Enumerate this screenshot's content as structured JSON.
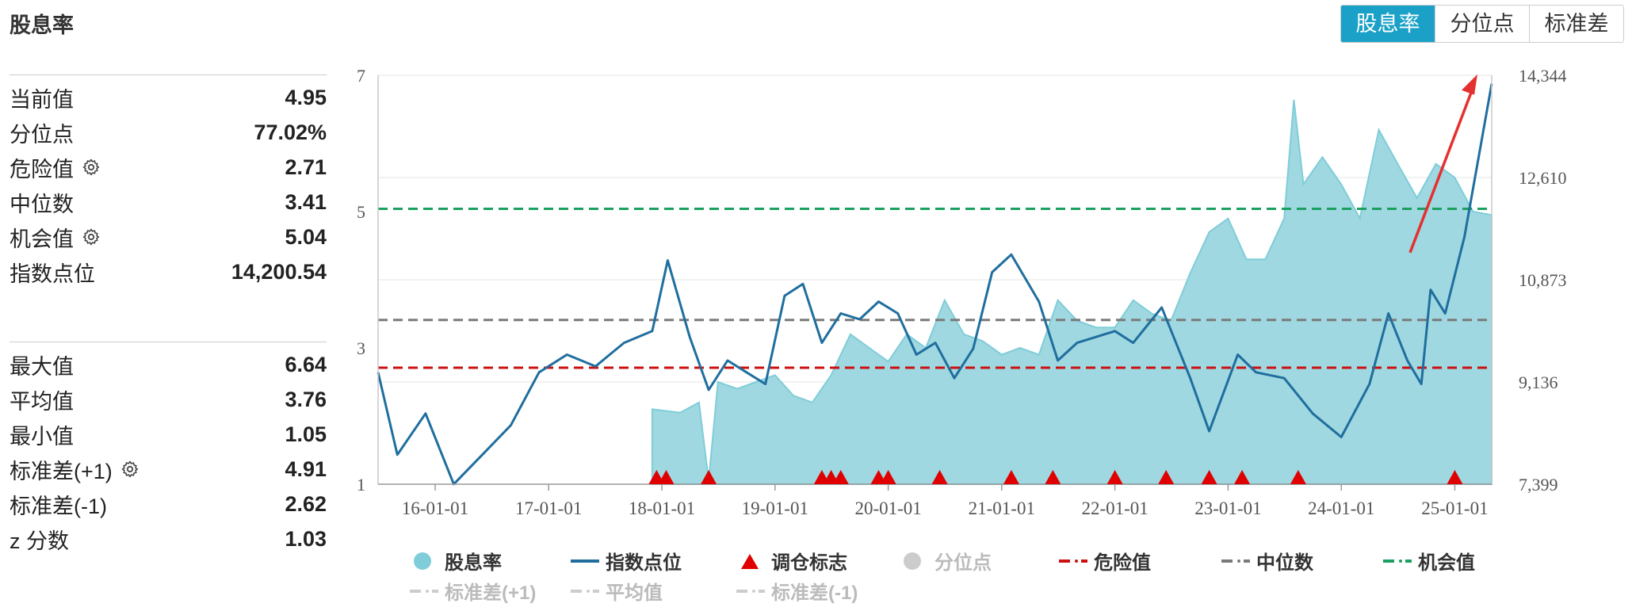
{
  "title": "股息率",
  "tabs": [
    "股息率",
    "分位点",
    "标准差"
  ],
  "active_tab": 0,
  "stats_group1": [
    {
      "label": "当前值",
      "value": "4.95",
      "gear": false
    },
    {
      "label": "分位点",
      "value": "77.02%",
      "gear": false
    },
    {
      "label": "危险值",
      "value": "2.71",
      "gear": true
    },
    {
      "label": "中位数",
      "value": "3.41",
      "gear": false
    },
    {
      "label": "机会值",
      "value": "5.04",
      "gear": true
    },
    {
      "label": "指数点位",
      "value": "14,200.54",
      "gear": false
    }
  ],
  "stats_group2": [
    {
      "label": "最大值",
      "value": "6.64",
      "gear": false
    },
    {
      "label": "平均值",
      "value": "3.76",
      "gear": false
    },
    {
      "label": "最小值",
      "value": "1.05",
      "gear": false
    },
    {
      "label": "标准差(+1)",
      "value": "4.91",
      "gear": true
    },
    {
      "label": "标准差(-1)",
      "value": "2.62",
      "gear": false
    },
    {
      "label": "z 分数",
      "value": "1.03",
      "gear": false
    }
  ],
  "legend": [
    {
      "name": "股息率",
      "symbol": "circle",
      "color": "#7fcdd8",
      "active": true
    },
    {
      "name": "指数点位",
      "symbol": "line",
      "color": "#1f6e9e",
      "active": true
    },
    {
      "name": "调仓标志",
      "symbol": "triangle",
      "color": "#e00000",
      "active": true
    },
    {
      "name": "分位点",
      "symbol": "circle",
      "color": "#cccccc",
      "active": false
    },
    {
      "name": "危险值",
      "symbol": "dash",
      "color": "#cc1111",
      "active": true
    },
    {
      "name": "中位数",
      "symbol": "dash",
      "color": "#7a7a7a",
      "active": true
    },
    {
      "name": "机会值",
      "symbol": "dash",
      "color": "#1aa060",
      "active": true
    },
    {
      "name": "标准差(+1)",
      "symbol": "dash",
      "color": "#cccccc",
      "active": false
    },
    {
      "name": "平均值",
      "symbol": "dash",
      "color": "#cccccc",
      "active": false
    },
    {
      "name": "标准差(-1)",
      "symbol": "dash",
      "color": "#cccccc",
      "active": false
    }
  ],
  "colors": {
    "accent": "#1ba1c7",
    "area": "#9fd8e0",
    "area_edge": "#7fcdd8",
    "index_line": "#1f6e9e",
    "danger": "#cc1111",
    "median": "#7a7a7a",
    "opportunity": "#1aa060",
    "marker": "#e00000",
    "arrow": "#e53030"
  },
  "chart_data": {
    "type": "line",
    "x_range": [
      "2015-07-01",
      "2025-04-30"
    ],
    "x_ticks": [
      "16-01-01",
      "17-01-01",
      "18-01-01",
      "19-01-01",
      "20-01-01",
      "21-01-01",
      "22-01-01",
      "23-01-01",
      "24-01-01",
      "25-01-01"
    ],
    "y_left": {
      "ticks": [
        1,
        3,
        5,
        7
      ],
      "ylim": [
        1,
        7
      ]
    },
    "y_right": {
      "ticks": [
        "7,399",
        "9,136",
        "10,873",
        "12,610",
        "14,344"
      ],
      "ylim": [
        7399,
        14344
      ]
    },
    "reference_lines": [
      {
        "name": "危险值",
        "value": 2.71,
        "axis": "left"
      },
      {
        "name": "中位数",
        "value": 3.41,
        "axis": "left"
      },
      {
        "name": "机会值",
        "value": 5.04,
        "axis": "left"
      }
    ],
    "series": [
      {
        "name": "股息率",
        "type": "area",
        "axis": "left",
        "points": [
          [
            "2017-12-01",
            2.1
          ],
          [
            "2018-03-01",
            2.05
          ],
          [
            "2018-05-01",
            2.2
          ],
          [
            "2018-06-01",
            1.05
          ],
          [
            "2018-07-01",
            2.5
          ],
          [
            "2018-09-01",
            2.4
          ],
          [
            "2018-11-01",
            2.5
          ],
          [
            "2019-01-01",
            2.6
          ],
          [
            "2019-03-01",
            2.3
          ],
          [
            "2019-05-01",
            2.2
          ],
          [
            "2019-07-01",
            2.6
          ],
          [
            "2019-09-01",
            3.2
          ],
          [
            "2019-11-01",
            3.0
          ],
          [
            "2020-01-01",
            2.8
          ],
          [
            "2020-03-01",
            3.2
          ],
          [
            "2020-05-01",
            3.0
          ],
          [
            "2020-07-01",
            3.7
          ],
          [
            "2020-09-01",
            3.2
          ],
          [
            "2020-11-01",
            3.1
          ],
          [
            "2021-01-01",
            2.9
          ],
          [
            "2021-03-01",
            3.0
          ],
          [
            "2021-05-01",
            2.9
          ],
          [
            "2021-07-01",
            3.7
          ],
          [
            "2021-09-01",
            3.4
          ],
          [
            "2021-11-01",
            3.3
          ],
          [
            "2022-01-01",
            3.3
          ],
          [
            "2022-03-01",
            3.7
          ],
          [
            "2022-05-01",
            3.5
          ],
          [
            "2022-07-01",
            3.4
          ],
          [
            "2022-09-01",
            4.1
          ],
          [
            "2022-11-01",
            4.7
          ],
          [
            "2023-01-01",
            4.9
          ],
          [
            "2023-03-01",
            4.3
          ],
          [
            "2023-05-01",
            4.3
          ],
          [
            "2023-07-01",
            4.9
          ],
          [
            "2023-08-01",
            6.64
          ],
          [
            "2023-09-01",
            5.4
          ],
          [
            "2023-11-01",
            5.8
          ],
          [
            "2024-01-01",
            5.4
          ],
          [
            "2024-03-01",
            4.9
          ],
          [
            "2024-05-01",
            6.2
          ],
          [
            "2024-07-01",
            5.7
          ],
          [
            "2024-09-01",
            5.2
          ],
          [
            "2024-11-01",
            5.7
          ],
          [
            "2025-01-01",
            5.5
          ],
          [
            "2025-03-01",
            5.0
          ],
          [
            "2025-04-30",
            4.95
          ]
        ]
      },
      {
        "name": "指数点位",
        "type": "line",
        "axis": "right",
        "points": [
          [
            "2015-07-01",
            9300
          ],
          [
            "2015-09-01",
            7900
          ],
          [
            "2015-12-01",
            8600
          ],
          [
            "2016-03-01",
            7400
          ],
          [
            "2016-06-01",
            7900
          ],
          [
            "2016-09-01",
            8400
          ],
          [
            "2016-12-01",
            9300
          ],
          [
            "2017-03-01",
            9600
          ],
          [
            "2017-06-01",
            9400
          ],
          [
            "2017-09-01",
            9800
          ],
          [
            "2017-12-01",
            10000
          ],
          [
            "2018-01-20",
            11200
          ],
          [
            "2018-04-01",
            9900
          ],
          [
            "2018-06-01",
            9000
          ],
          [
            "2018-08-01",
            9500
          ],
          [
            "2018-10-01",
            9300
          ],
          [
            "2018-12-01",
            9100
          ],
          [
            "2019-02-01",
            10600
          ],
          [
            "2019-04-01",
            10800
          ],
          [
            "2019-06-01",
            9800
          ],
          [
            "2019-08-01",
            10300
          ],
          [
            "2019-10-01",
            10200
          ],
          [
            "2019-12-01",
            10500
          ],
          [
            "2020-02-01",
            10300
          ],
          [
            "2020-04-01",
            9600
          ],
          [
            "2020-06-01",
            9800
          ],
          [
            "2020-08-01",
            9200
          ],
          [
            "2020-10-01",
            9700
          ],
          [
            "2020-12-01",
            11000
          ],
          [
            "2021-02-01",
            11300
          ],
          [
            "2021-05-01",
            10500
          ],
          [
            "2021-07-01",
            9500
          ],
          [
            "2021-09-01",
            9800
          ],
          [
            "2021-11-01",
            9900
          ],
          [
            "2022-01-01",
            10000
          ],
          [
            "2022-03-01",
            9800
          ],
          [
            "2022-06-01",
            10400
          ],
          [
            "2022-09-01",
            9200
          ],
          [
            "2022-11-01",
            8300
          ],
          [
            "2023-02-01",
            9600
          ],
          [
            "2023-04-01",
            9300
          ],
          [
            "2023-07-01",
            9200
          ],
          [
            "2023-10-01",
            8600
          ],
          [
            "2024-01-01",
            8200
          ],
          [
            "2024-04-01",
            9100
          ],
          [
            "2024-06-01",
            10300
          ],
          [
            "2024-08-01",
            9500
          ],
          [
            "2024-09-15",
            9100
          ],
          [
            "2024-10-15",
            10700
          ],
          [
            "2024-12-01",
            10300
          ],
          [
            "2025-02-01",
            11600
          ],
          [
            "2025-04-30",
            14200
          ]
        ]
      },
      {
        "name": "调仓标志",
        "type": "scatter",
        "dates": [
          "2017-12-15",
          "2018-01-15",
          "2018-06-01",
          "2019-06-01",
          "2019-07-01",
          "2019-08-01",
          "2019-12-01",
          "2020-01-01",
          "2020-06-15",
          "2021-02-01",
          "2021-06-15",
          "2022-01-01",
          "2022-06-15",
          "2022-11-01",
          "2023-02-15",
          "2023-08-15",
          "2025-01-01"
        ]
      }
    ]
  }
}
